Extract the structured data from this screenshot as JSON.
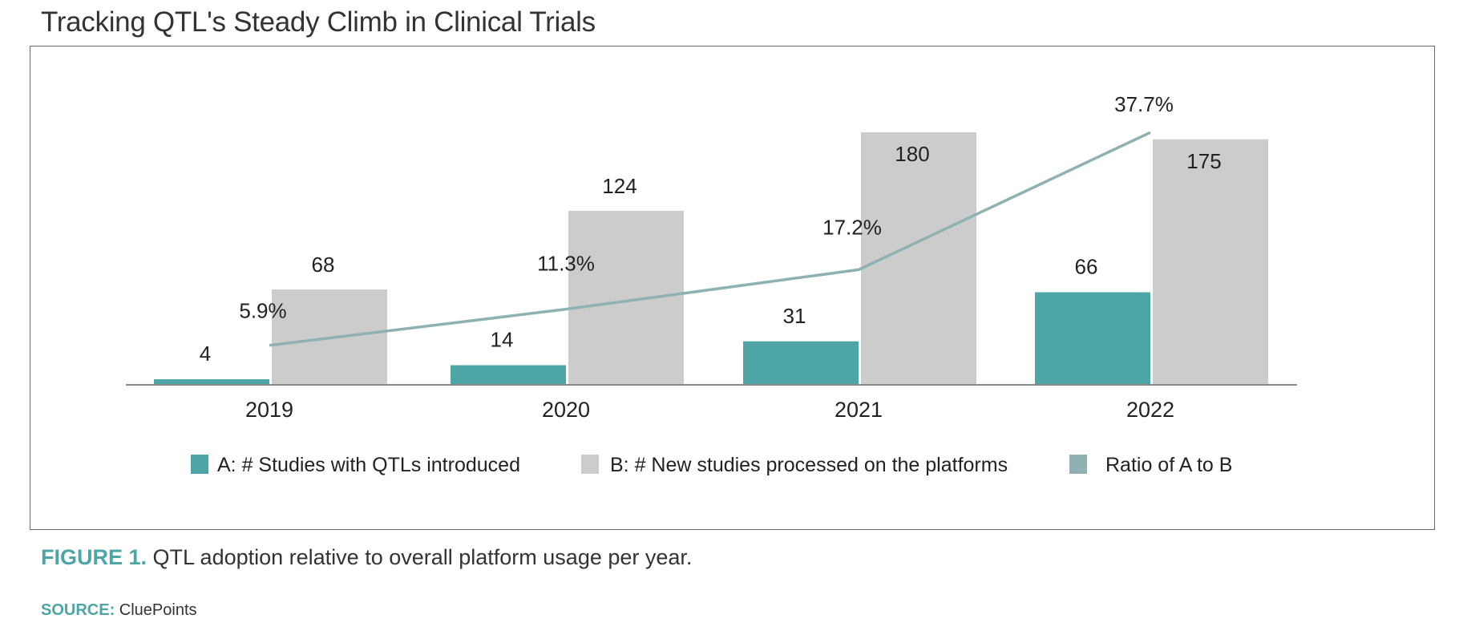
{
  "header": {
    "title": "Tracking QTL's Steady Climb in Clinical Trials"
  },
  "chart_data": {
    "type": "bar",
    "categories": [
      "2019",
      "2020",
      "2021",
      "2022"
    ],
    "series": [
      {
        "name": "A: # Studies with QTLs introduced",
        "kind": "bar",
        "color": "#4ea5a6",
        "values": [
          4,
          14,
          31,
          66
        ]
      },
      {
        "name": "B: # New studies processed on the platforms",
        "kind": "bar",
        "color": "#cccccc",
        "values": [
          68,
          124,
          180,
          175
        ]
      },
      {
        "name": "Ratio of A to B",
        "kind": "line",
        "color": "#8fb1b4",
        "values": [
          5.9,
          11.3,
          17.2,
          37.7
        ]
      }
    ],
    "bar_labels": {
      "a": [
        "4",
        "14",
        "31",
        "66"
      ],
      "b": [
        "68",
        "124",
        "180",
        "175"
      ]
    },
    "line_labels": [
      "5.9%",
      "11.3%",
      "17.2%",
      "37.7%"
    ],
    "ylim_bars": [
      0,
      180
    ],
    "ylim_ratio": [
      0,
      40
    ],
    "legend_position": "bottom"
  },
  "caption": {
    "label": "FIGURE 1.",
    "text": "QTL adoption relative to overall platform usage per year."
  },
  "source": {
    "label": "SOURCE:",
    "text": "CluePoints"
  }
}
